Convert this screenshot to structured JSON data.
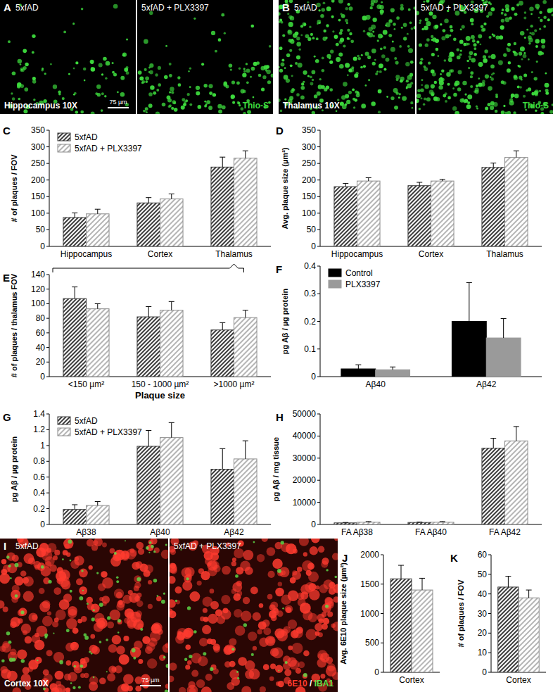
{
  "chart_data": [
    {
      "panel": "C",
      "type": "bar",
      "ylabel": "# of plaques / FOV",
      "categories": [
        "Hippocampus",
        "Cortex",
        "Thalamus"
      ],
      "series": [
        {
          "name": "5xfAD",
          "color": "#3a3a3a",
          "line_style": "dense-hatch",
          "values": [
            87,
            131,
            239
          ],
          "errors": [
            14,
            16,
            30
          ]
        },
        {
          "name": "5xfAD + PLX3397",
          "color": "#8c8c8c",
          "line_style": "sparse-hatch",
          "values": [
            98,
            143,
            266
          ],
          "errors": [
            14,
            15,
            22
          ]
        }
      ],
      "ylim": [
        0,
        350
      ],
      "yticks": [
        0,
        50,
        100,
        150,
        200,
        250,
        300,
        350
      ],
      "legend": "upper left",
      "grid": false
    },
    {
      "panel": "D",
      "type": "bar",
      "ylabel": "Avg. plaque size (µm²)",
      "categories": [
        "Hippocampus",
        "Cortex",
        "Thalamus"
      ],
      "series": [
        {
          "color": "#3a3a3a",
          "line_style": "dense-hatch",
          "values": [
            180,
            183,
            238
          ],
          "errors": [
            10,
            10,
            13
          ]
        },
        {
          "color": "#8c8c8c",
          "line_style": "sparse-hatch",
          "values": [
            197,
            197,
            268
          ],
          "errors": [
            10,
            5,
            20
          ]
        }
      ],
      "ylim": [
        0,
        350
      ],
      "yticks": [
        0,
        50,
        100,
        150,
        200,
        250,
        300,
        350
      ],
      "grid": false
    },
    {
      "panel": "E",
      "type": "bar",
      "ylabel": "# of plaques / thalamus FOV",
      "xlabel": "Plaque size",
      "categories": [
        "<150 µm²",
        "150 - 1000 µm²",
        ">1000 µm²"
      ],
      "series": [
        {
          "color": "#3a3a3a",
          "line_style": "dense-hatch",
          "values": [
            107,
            82,
            64
          ],
          "errors": [
            16,
            14,
            10
          ]
        },
        {
          "color": "#8c8c8c",
          "line_style": "sparse-hatch",
          "values": [
            93,
            91,
            81
          ],
          "errors": [
            7,
            12,
            10
          ]
        }
      ],
      "ylim": [
        0,
        140
      ],
      "yticks": [
        0,
        20,
        40,
        60,
        80,
        100,
        120,
        140
      ],
      "grid": false
    },
    {
      "panel": "F",
      "type": "bar",
      "ylabel": "pg Aβ / µg protein",
      "categories": [
        "Aβ40",
        "Aβ42"
      ],
      "series": [
        {
          "name": "Control",
          "color": "#000000",
          "values": [
            0.028,
            0.2
          ],
          "errors": [
            0.015,
            0.14
          ]
        },
        {
          "name": "PLX3397",
          "color": "#9a9a9a",
          "values": [
            0.025,
            0.14
          ],
          "errors": [
            0.01,
            0.07
          ]
        }
      ],
      "ylim": [
        0,
        0.4
      ],
      "yticks": [
        0,
        0.1,
        0.2,
        0.3,
        0.4
      ],
      "legend": "upper left",
      "grid": false
    },
    {
      "panel": "G",
      "type": "bar",
      "ylabel": "pg Aβ / µg protein",
      "categories": [
        "Aβ38",
        "Aβ40",
        "Aβ42"
      ],
      "series": [
        {
          "name": "5xfAD",
          "color": "#3a3a3a",
          "line_style": "dense-hatch",
          "values": [
            0.19,
            0.99,
            0.7
          ],
          "errors": [
            0.06,
            0.2,
            0.26
          ]
        },
        {
          "name": "5xfAD + PLX3397",
          "color": "#8c8c8c",
          "line_style": "sparse-hatch",
          "values": [
            0.24,
            1.1,
            0.83
          ],
          "errors": [
            0.05,
            0.19,
            0.23
          ]
        }
      ],
      "ylim": [
        0,
        1.4
      ],
      "yticks": [
        0,
        0.2,
        0.4,
        0.6,
        0.8,
        1,
        1.2,
        1.4
      ],
      "legend": "upper left",
      "grid": false
    },
    {
      "panel": "H",
      "type": "bar",
      "ylabel": "pg Aβ / mg tissue",
      "categories": [
        "FA Aβ38",
        "FA Aβ40",
        "FA Aβ42"
      ],
      "series": [
        {
          "color": "#3a3a3a",
          "line_style": "dense-hatch",
          "values": [
            700,
            900,
            34500
          ],
          "errors": [
            200,
            200,
            4500
          ]
        },
        {
          "color": "#8c8c8c",
          "line_style": "sparse-hatch",
          "values": [
            1000,
            1000,
            37800
          ],
          "errors": [
            300,
            300,
            6500
          ]
        }
      ],
      "ylim": [
        0,
        50000
      ],
      "yticks": [
        0,
        10000,
        20000,
        30000,
        40000,
        50000
      ],
      "grid": false
    },
    {
      "panel": "J",
      "type": "bar",
      "ylabel": "Avg. 6E10 plaque size (µm²)",
      "categories": [
        "Cortex"
      ],
      "series": [
        {
          "color": "#3a3a3a",
          "line_style": "dense-hatch",
          "values": [
            1590
          ],
          "errors": [
            230
          ]
        },
        {
          "color": "#8c8c8c",
          "line_style": "sparse-hatch",
          "values": [
            1400
          ],
          "errors": [
            200
          ]
        }
      ],
      "ylim": [
        0,
        2000
      ],
      "yticks": [
        0,
        500,
        1000,
        1500,
        2000
      ],
      "grid": false
    },
    {
      "panel": "K",
      "type": "bar",
      "ylabel": "# of plaques / FOV",
      "categories": [
        "Cortex"
      ],
      "series": [
        {
          "color": "#3a3a3a",
          "line_style": "dense-hatch",
          "values": [
            43.5
          ],
          "errors": [
            5.5
          ]
        },
        {
          "color": "#8c8c8c",
          "line_style": "sparse-hatch",
          "values": [
            38
          ],
          "errors": [
            4
          ]
        }
      ],
      "ylim": [
        0,
        60
      ],
      "yticks": [
        0,
        10,
        20,
        30,
        40,
        50,
        60
      ],
      "grid": false
    }
  ],
  "micrographs": [
    {
      "panel": "A",
      "images": [
        "5xfAD",
        "5xfAD + PLX3397"
      ],
      "region": "Hippocampus 10X",
      "scale_bar": "75 µm",
      "stains": [
        {
          "label": "Thio-S",
          "color": "#3ddc3d"
        }
      ]
    },
    {
      "panel": "B",
      "images": [
        "5xfAD",
        "5xfAD + PLX3397"
      ],
      "region": "Thalamus 10X",
      "stains": [
        {
          "label": "Thio-S",
          "color": "#3ddc3d"
        }
      ]
    },
    {
      "panel": "I",
      "images": [
        "5xfAD",
        "5xfAD + PLX3397"
      ],
      "region": "Cortex 10X",
      "scale_bar": "75 µm",
      "stains": [
        {
          "label": "6E10",
          "color": "#ff3b2f"
        },
        {
          "label": "IBA1",
          "color": "#5fe04a"
        }
      ],
      "stain_separator": "/"
    }
  ]
}
